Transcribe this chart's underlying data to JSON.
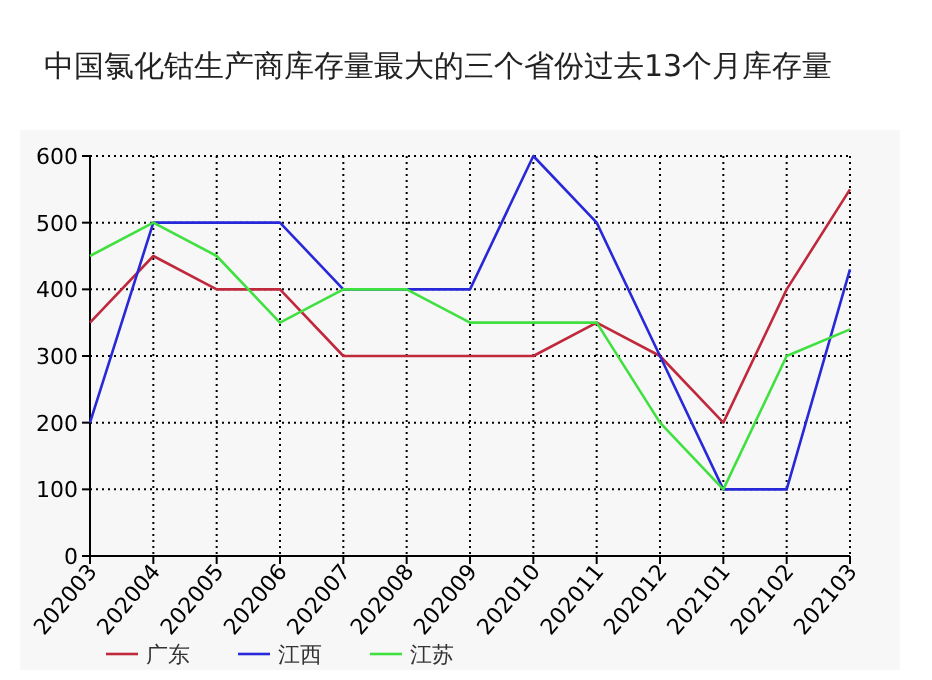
{
  "chart_data": {
    "type": "line",
    "title": "中国氯化钴生产商库存量最大的三个省份过去13个月库存量",
    "categories": [
      "202003",
      "202004",
      "202005",
      "202006",
      "202007",
      "202008",
      "202009",
      "202010",
      "202011",
      "202012",
      "202101",
      "202102",
      "202103"
    ],
    "series": [
      {
        "name": "广东",
        "color": "#c0283c",
        "values": [
          350,
          450,
          400,
          400,
          300,
          300,
          300,
          300,
          350,
          300,
          200,
          400,
          550
        ]
      },
      {
        "name": "江西",
        "color": "#2828d8",
        "values": [
          200,
          500,
          500,
          500,
          400,
          400,
          400,
          600,
          500,
          300,
          100,
          100,
          430
        ]
      },
      {
        "name": "江苏",
        "color": "#40e040",
        "values": [
          450,
          500,
          450,
          350,
          400,
          400,
          350,
          350,
          350,
          200,
          100,
          300,
          340
        ]
      }
    ],
    "ylim": [
      0,
      600
    ],
    "yticks": [
      0,
      100,
      200,
      300,
      400,
      500,
      600
    ],
    "grid": true,
    "legend": "bottom",
    "marker": "none",
    "line_style": "solid"
  }
}
